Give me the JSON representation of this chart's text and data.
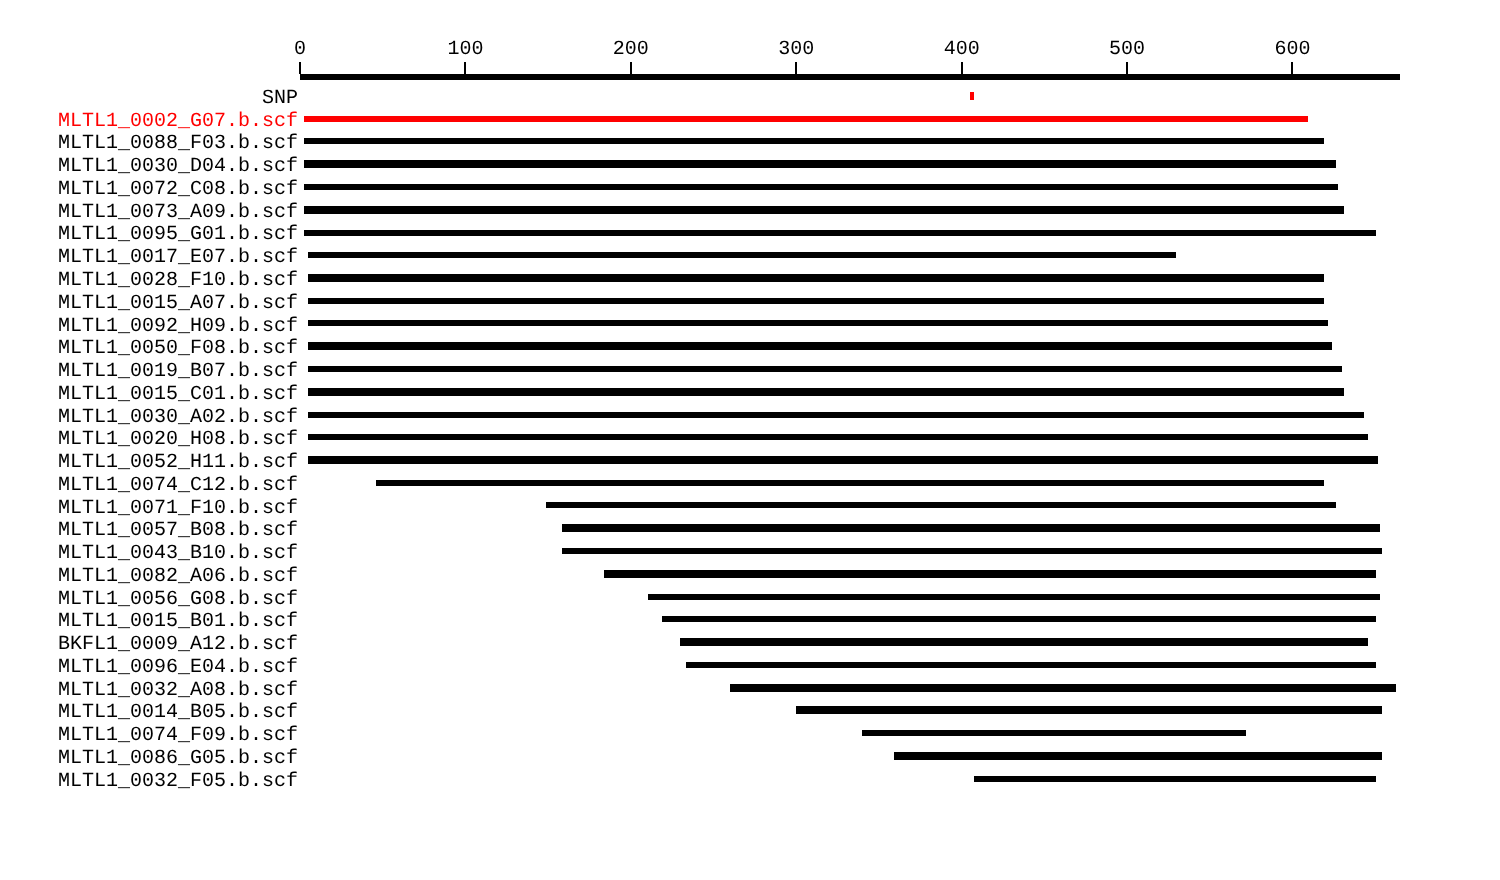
{
  "chart_data": {
    "type": "bar",
    "orientation": "horizontal",
    "categories": [
      "SNP",
      "MLTL1_0002_G07.b.scf",
      "MLTL1_0088_F03.b.scf",
      "MLTL1_0030_D04.b.scf",
      "MLTL1_0072_C08.b.scf",
      "MLTL1_0073_A09.b.scf",
      "MLTL1_0095_G01.b.scf",
      "MLTL1_0017_E07.b.scf",
      "MLTL1_0028_F10.b.scf",
      "MLTL1_0015_A07.b.scf",
      "MLTL1_0092_H09.b.scf",
      "MLTL1_0050_F08.b.scf",
      "MLTL1_0019_B07.b.scf",
      "MLTL1_0015_C01.b.scf",
      "MLTL1_0030_A02.b.scf",
      "MLTL1_0020_H08.b.scf",
      "MLTL1_0052_H11.b.scf",
      "MLTL1_0074_C12.b.scf",
      "MLTL1_0071_F10.b.scf",
      "MLTL1_0057_B08.b.scf",
      "MLTL1_0043_B10.b.scf",
      "MLTL1_0082_A06.b.scf",
      "MLTL1_0056_G08.b.scf",
      "MLTL1_0015_B01.b.scf",
      "BKFL1_0009_A12.b.scf",
      "MLTL1_0096_E04.b.scf",
      "MLTL1_0032_A08.b.scf",
      "MLTL1_0014_B05.b.scf",
      "MLTL1_0074_F09.b.scf",
      "MLTL1_0086_G05.b.scf",
      "MLTL1_0032_F05.b.scf"
    ],
    "base": [
      406,
      2,
      2,
      2,
      2,
      2,
      2,
      5,
      5,
      5,
      5,
      5,
      5,
      5,
      5,
      5,
      5,
      46,
      149,
      158,
      158,
      184,
      210,
      219,
      230,
      233,
      260,
      300,
      340,
      359,
      408
    ],
    "values": [
      2,
      607,
      617,
      624,
      625,
      629,
      648,
      525,
      614,
      614,
      617,
      619,
      625,
      626,
      638,
      641,
      647,
      573,
      477,
      495,
      496,
      466,
      443,
      431,
      416,
      417,
      403,
      354,
      232,
      295,
      242
    ],
    "colors": [
      "#ff0000",
      "#ff0000",
      "#000000",
      "#000000",
      "#000000",
      "#000000",
      "#000000",
      "#000000",
      "#000000",
      "#000000",
      "#000000",
      "#000000",
      "#000000",
      "#000000",
      "#000000",
      "#000000",
      "#000000",
      "#000000",
      "#000000",
      "#000000",
      "#000000",
      "#000000",
      "#000000",
      "#000000",
      "#000000",
      "#000000",
      "#000000",
      "#000000",
      "#000000",
      "#000000",
      "#000000"
    ],
    "xlim": [
      0,
      665
    ],
    "xticks": [
      0,
      100,
      200,
      300,
      400,
      500,
      600
    ]
  }
}
